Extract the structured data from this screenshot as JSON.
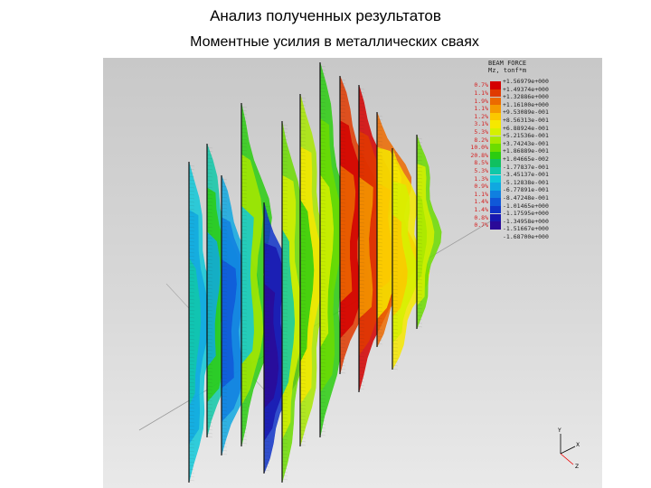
{
  "header": {
    "title": "Анализ полученных результатов",
    "subtitle": "Моментные усилия в металлических сваях"
  },
  "legend": {
    "title_line1": "BEAM FORCE",
    "title_line2": "Mz, tonf*m",
    "top_value": "+1.56979e+000",
    "entries": [
      {
        "pct": "0.7%",
        "value": "+1.49374e+000",
        "color": "#d40000"
      },
      {
        "pct": "1.1%",
        "value": "+1.32886e+000",
        "color": "#e03a00"
      },
      {
        "pct": "1.9%",
        "value": "+1.16100e+000",
        "color": "#ec6a00"
      },
      {
        "pct": "1.1%",
        "value": "+9.53089e-001",
        "color": "#f59a00"
      },
      {
        "pct": "1.2%",
        "value": "+8.56313e-001",
        "color": "#fbc800"
      },
      {
        "pct": "3.1%",
        "value": "+6.88924e-001",
        "color": "#f6e800"
      },
      {
        "pct": "5.3%",
        "value": "+5.21536e-001",
        "color": "#d6f000"
      },
      {
        "pct": "8.2%",
        "value": "+3.74243e-001",
        "color": "#a8e800"
      },
      {
        "pct": "10.0%",
        "value": "+1.86889e-001",
        "color": "#6cdc00"
      },
      {
        "pct": "20.8%",
        "value": "+1.04665e-002",
        "color": "#2ccc10"
      },
      {
        "pct": "8.5%",
        "value": "-1.77837e-001",
        "color": "#10c060"
      },
      {
        "pct": "5.3%",
        "value": "-3.45137e-001",
        "color": "#10c8a8"
      },
      {
        "pct": "1.3%",
        "value": "-5.12838e-001",
        "color": "#10c8d8"
      },
      {
        "pct": "0.9%",
        "value": "-6.77891e-001",
        "color": "#10a8e0"
      },
      {
        "pct": "1.1%",
        "value": "-8.47248e-001",
        "color": "#1080e0"
      },
      {
        "pct": "1.4%",
        "value": "-1.01465e+000",
        "color": "#1058d8"
      },
      {
        "pct": "1.4%",
        "value": "-1.17595e+000",
        "color": "#1034c8"
      },
      {
        "pct": "0.8%",
        "value": "-1.34958e+000",
        "color": "#1818b0"
      },
      {
        "pct": "0.7%",
        "value": "-1.51667e+000",
        "color": "#2a0a98"
      },
      {
        "pct": "",
        "value": "-1.68700e+000",
        "color": ""
      }
    ]
  },
  "triad": {
    "y_label": "Y",
    "x_label": "X",
    "z_label": "Z"
  }
}
